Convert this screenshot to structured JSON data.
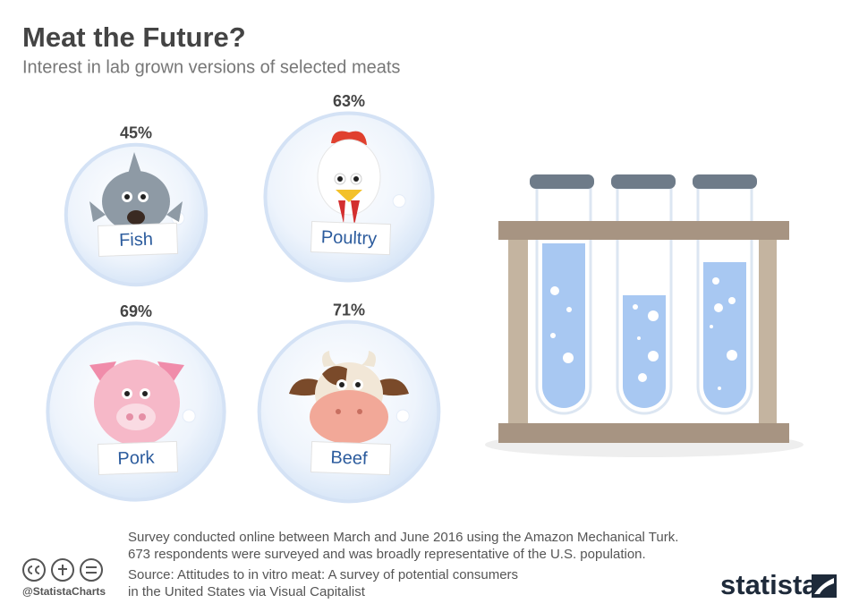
{
  "chart_data": {
    "type": "bubble",
    "title": "Meat the Future?",
    "subtitle": "Interest in lab grown versions of selected meats",
    "categories": [
      "Fish",
      "Poultry",
      "Pork",
      "Beef"
    ],
    "values": [
      45,
      63,
      69,
      71
    ],
    "value_labels": [
      "45%",
      "63%",
      "69%",
      "71%"
    ],
    "color": "#e4eefa",
    "notes": [
      "Survey conducted online between March and June 2016 using the Amazon Mechanical Turk.",
      "673 respondents were surveyed and was broadly representative of the U.S. population."
    ],
    "source": [
      "Source: Attitudes to in vitro meat: A survey of potential consumers",
      "in the United States via Visual Capitalist"
    ],
    "handle": "@StatistaCharts",
    "brand": "statista"
  }
}
